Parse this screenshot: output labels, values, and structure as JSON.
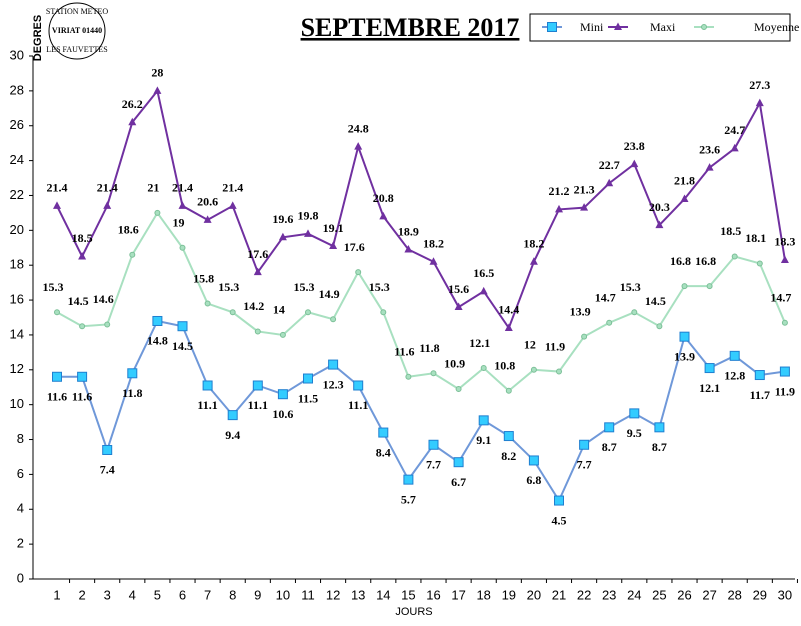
{
  "chart_data": {
    "type": "line",
    "title": "SEPTEMBRE 2017",
    "xlabel": "JOURS",
    "ylabel": "DEGRES",
    "logo": [
      "STATION METEO",
      "VIRIAT 01440",
      "LES FAUVETTES"
    ],
    "categories": [
      "1",
      "2",
      "3",
      "4",
      "5",
      "6",
      "7",
      "8",
      "9",
      "10",
      "11",
      "12",
      "13",
      "14",
      "15",
      "16",
      "17",
      "18",
      "19",
      "20",
      "21",
      "22",
      "23",
      "24",
      "25",
      "26",
      "27",
      "28",
      "29",
      "30"
    ],
    "ylim": [
      0,
      30
    ],
    "yticks": [
      0,
      2,
      4,
      6,
      8,
      10,
      12,
      14,
      16,
      18,
      20,
      22,
      24,
      26,
      28,
      30
    ],
    "series": [
      {
        "name": "Mini",
        "color": "#6f98d9",
        "values": [
          11.6,
          11.6,
          7.4,
          11.8,
          14.8,
          14.5,
          11.1,
          9.4,
          11.1,
          10.6,
          11.5,
          12.3,
          11.1,
          8.4,
          5.7,
          7.7,
          6.7,
          9.1,
          8.2,
          6.8,
          4.5,
          7.7,
          8.7,
          9.5,
          8.7,
          13.9,
          12.1,
          12.8,
          11.7,
          11.9
        ]
      },
      {
        "name": "Maxi",
        "color": "#7030a0",
        "values": [
          21.4,
          18.5,
          21.4,
          26.2,
          28,
          21.4,
          20.6,
          21.4,
          17.6,
          19.6,
          19.8,
          19.1,
          24.8,
          20.8,
          18.9,
          18.2,
          15.6,
          16.5,
          14.4,
          18.2,
          21.2,
          21.3,
          22.7,
          23.8,
          20.3,
          21.8,
          23.6,
          24.7,
          27.3,
          18.3
        ]
      },
      {
        "name": "Moyenne",
        "color": "#a8e0c0",
        "values": [
          15.3,
          14.5,
          14.6,
          18.6,
          21,
          19,
          15.8,
          15.3,
          14.2,
          14,
          15.3,
          14.9,
          17.6,
          15.3,
          11.6,
          11.8,
          10.9,
          12.1,
          10.8,
          12,
          11.9,
          13.9,
          14.7,
          15.3,
          14.5,
          16.8,
          16.8,
          18.5,
          18.1,
          14.7
        ]
      }
    ]
  }
}
